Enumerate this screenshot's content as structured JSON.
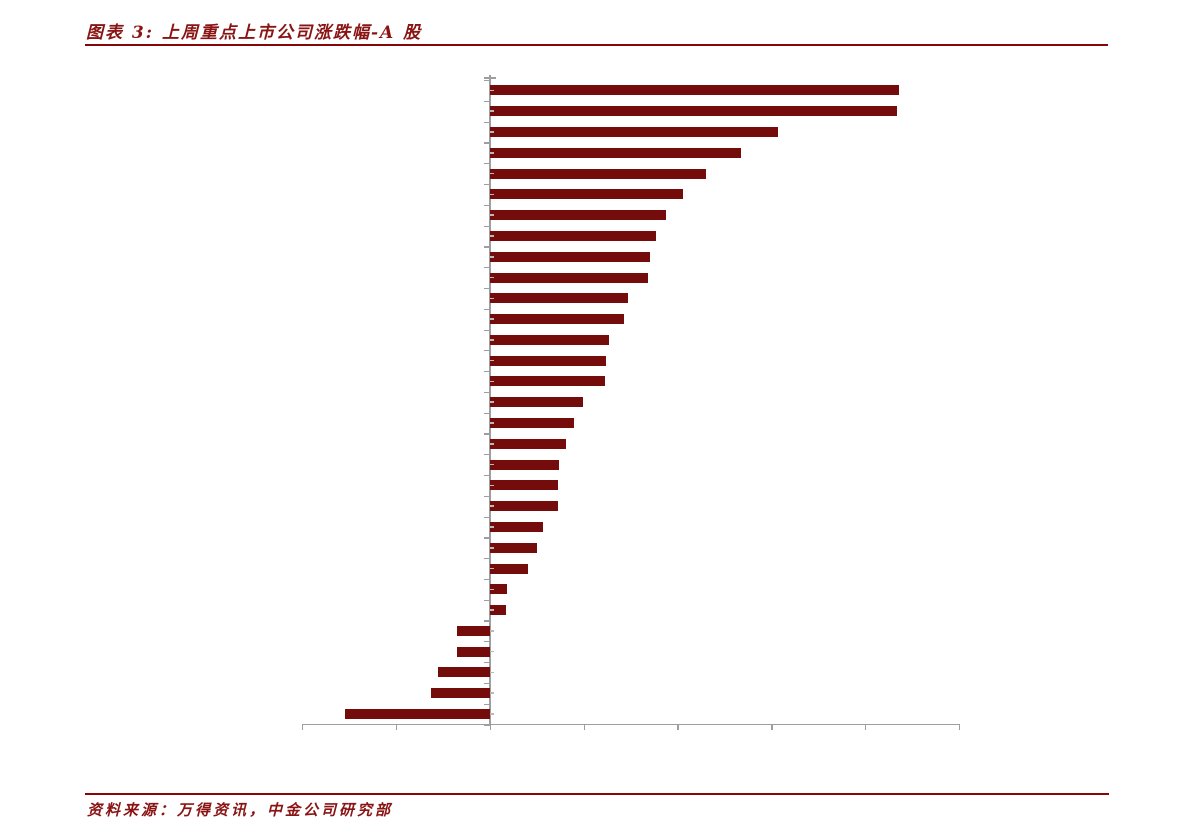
{
  "page": {
    "background": "#ffffff"
  },
  "header": {
    "title": "图表 3: 上周重点上市公司涨跌幅-A 股",
    "text_color": "#8a1414",
    "rule_color": "#850707"
  },
  "footer": {
    "source": "资料来源：万得资讯，中金公司研究部"
  },
  "chart_data": {
    "type": "bar",
    "orientation": "horizontal",
    "title": "图表 3: 上周重点上市公司涨跌幅-A 股",
    "subtitle": "",
    "legend": "none",
    "grid": "off",
    "bar_color": "#750c0c",
    "axis_color": "#9e9e9e",
    "bar_center_tick_color": "#b9b9b9",
    "value_axis": {
      "position": "bottom",
      "tick_labels_visible": false,
      "tick_count": 8,
      "zero_at_tick_index": 2,
      "range_in_gridline_units": [
        -2,
        5
      ],
      "note": "no numeric tick labels are rendered in the source image; values below are measured in gridline intervals"
    },
    "category_axis": {
      "position": "zero-line (vertical)",
      "labels_visible": false,
      "bar_count": 31,
      "note": "no company-name labels are rendered in the source image"
    },
    "series": [
      {
        "name": "涨跌幅",
        "values_in_gridline_units": [
          4.36,
          4.34,
          3.07,
          2.67,
          2.3,
          2.06,
          1.88,
          1.77,
          1.7,
          1.68,
          1.47,
          1.43,
          1.27,
          1.24,
          1.23,
          0.99,
          0.9,
          0.81,
          0.73,
          0.72,
          0.72,
          0.57,
          0.5,
          0.41,
          0.18,
          0.17,
          -0.35,
          -0.35,
          -0.55,
          -0.63,
          -1.54
        ]
      }
    ]
  }
}
